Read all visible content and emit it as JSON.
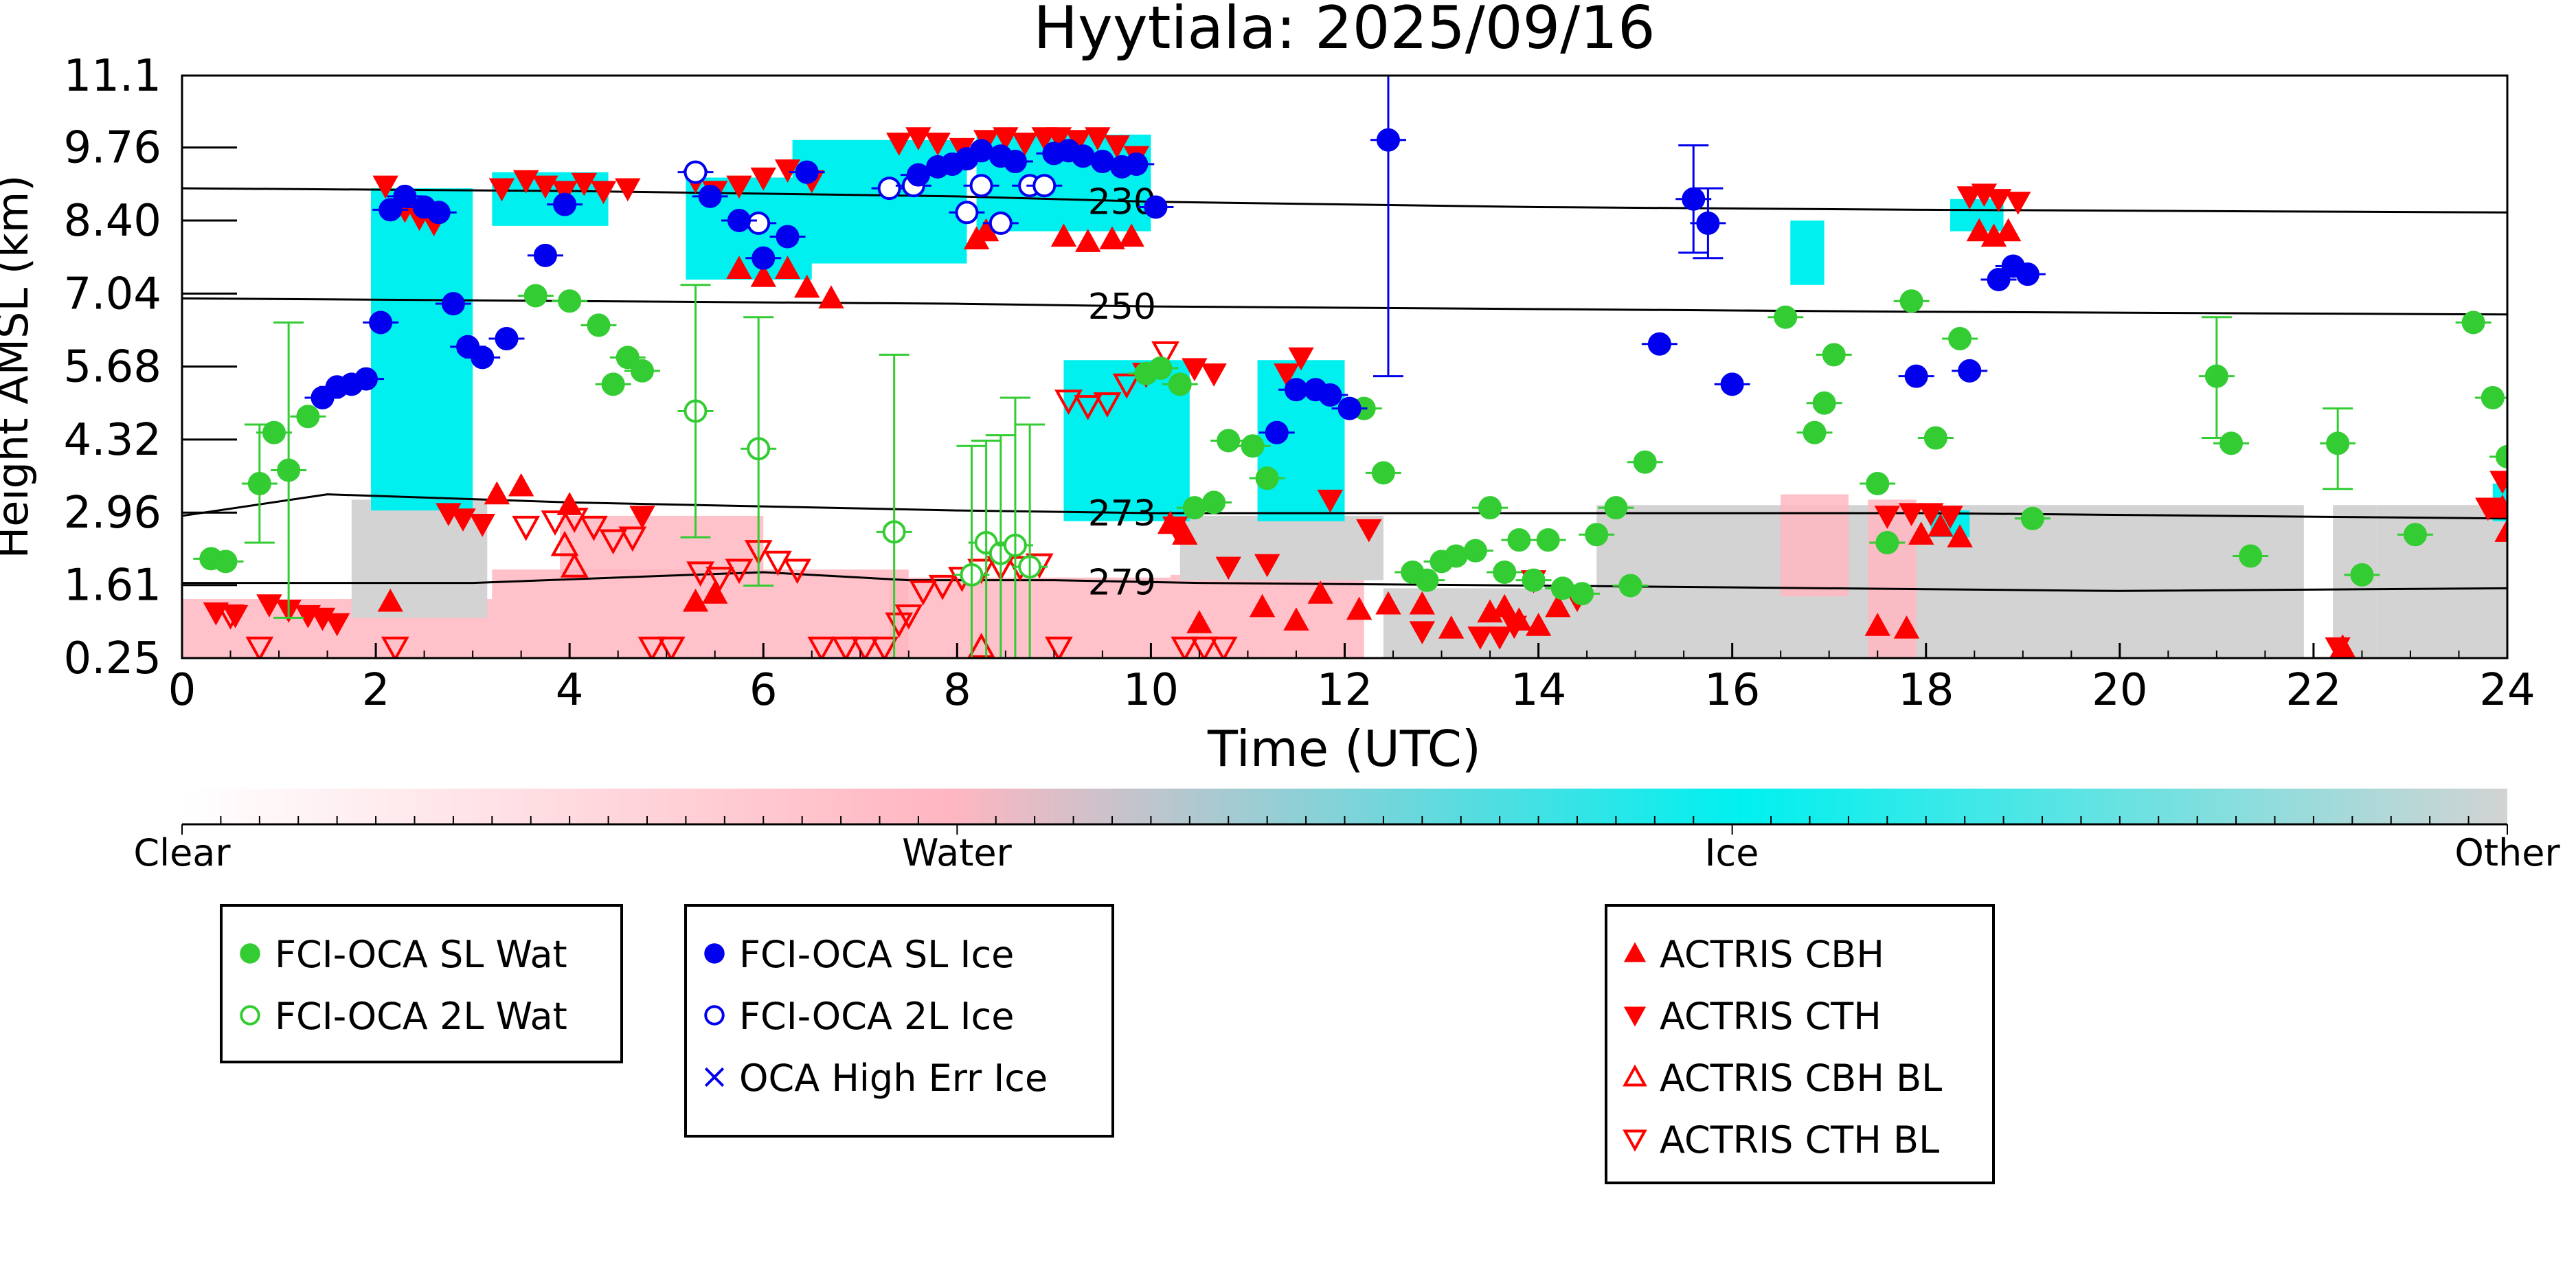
{
  "chart_data": {
    "type": "scatter",
    "title": "Hyytiala: 2025/09/16",
    "xlabel": "Time (UTC)",
    "ylabel": "Height AMSL (km)",
    "xlim": [
      0,
      24
    ],
    "ylim": [
      0.25,
      11.1
    ],
    "xticks": [
      0,
      2,
      4,
      6,
      8,
      10,
      12,
      14,
      16,
      18,
      20,
      22,
      24
    ],
    "yticks": [
      0.25,
      1.61,
      2.96,
      4.32,
      5.68,
      7.04,
      8.4,
      9.76,
      11.1
    ],
    "yticklabels": [
      "0.25",
      "1.61",
      "2.96",
      "4.32",
      "5.68",
      "7.04",
      "8.40",
      "9.76",
      "11.1"
    ],
    "colorbar": {
      "labels": [
        "Clear",
        "Water",
        "Ice",
        "Other"
      ],
      "colors": [
        "#ffffff",
        "#ffb6c1",
        "#00f0f0",
        "#d3d3d3"
      ]
    },
    "colors": {
      "water": "#33cc33",
      "ice": "#0000ee",
      "actris": "#ff0000",
      "cloud_ice": "#00f0f0",
      "cloud_water": "#ffb6c1",
      "cloud_other": "#d3d3d3"
    },
    "contours": [
      {
        "label": "230",
        "x": [
          0,
          4,
          8,
          10,
          14,
          18,
          24
        ],
        "y": [
          9.0,
          8.95,
          8.85,
          8.75,
          8.65,
          8.6,
          8.55
        ]
      },
      {
        "label": "250",
        "x": [
          0,
          4,
          8,
          10,
          14,
          18,
          24
        ],
        "y": [
          6.95,
          6.9,
          6.85,
          6.8,
          6.75,
          6.7,
          6.65
        ]
      },
      {
        "label": "273",
        "x": [
          0,
          1.5,
          4,
          8,
          10,
          14,
          18,
          24
        ],
        "y": [
          2.9,
          3.3,
          3.15,
          3.0,
          2.95,
          2.95,
          2.95,
          2.85
        ]
      },
      {
        "label": "279",
        "x": [
          0,
          3,
          6,
          7.5,
          9,
          10.5,
          14,
          20,
          24
        ],
        "y": [
          1.65,
          1.65,
          1.85,
          1.7,
          1.7,
          1.65,
          1.6,
          1.5,
          1.55
        ]
      }
    ],
    "series": [
      {
        "name": "FCI-OCA SL Wat",
        "x": [
          0.3,
          0.45,
          0.8,
          0.95,
          1.1,
          1.3,
          3.65,
          4.0,
          4.3,
          4.45,
          4.6,
          4.75,
          9.95,
          10.1,
          10.3,
          10.45,
          10.65,
          10.8,
          11.05,
          11.2,
          12.2,
          12.4,
          12.7,
          12.85,
          13.0,
          13.15,
          13.35,
          13.5,
          13.65,
          13.8,
          13.95,
          14.1,
          14.25,
          14.45,
          14.6,
          14.8,
          14.95,
          15.1,
          16.55,
          16.85,
          16.95,
          17.05,
          17.5,
          17.6,
          17.85,
          18.1,
          18.35,
          19.1,
          21.0,
          21.15,
          21.35,
          22.25,
          22.5,
          23.05,
          23.65,
          23.85,
          24.0
        ],
        "y": [
          2.1,
          2.05,
          3.5,
          4.45,
          3.75,
          4.75,
          7.0,
          6.9,
          6.45,
          5.35,
          5.85,
          5.6,
          5.55,
          5.65,
          5.35,
          3.05,
          3.15,
          4.3,
          4.2,
          3.6,
          4.9,
          3.7,
          1.85,
          1.7,
          2.05,
          2.15,
          2.25,
          3.05,
          1.85,
          2.45,
          1.7,
          2.45,
          1.55,
          1.45,
          2.55,
          3.05,
          1.6,
          3.9,
          6.6,
          4.45,
          5.0,
          5.9,
          3.5,
          2.4,
          6.9,
          4.35,
          6.2,
          2.85,
          5.5,
          4.25,
          2.15,
          4.25,
          1.8,
          2.55,
          6.5,
          5.1,
          4.0
        ]
      },
      {
        "name": "FCI-OCA 2L Wat",
        "x": [
          5.3,
          5.95,
          7.35,
          8.15,
          8.3,
          8.45,
          8.6,
          8.75
        ],
        "y": [
          4.85,
          4.15,
          2.6,
          1.8,
          2.4,
          2.2,
          2.35,
          1.95
        ]
      },
      {
        "name": "FCI-OCA SL Ice",
        "x": [
          1.45,
          1.6,
          1.75,
          1.9,
          2.05,
          2.15,
          2.3,
          2.5,
          2.65,
          2.8,
          2.95,
          3.1,
          3.35,
          3.75,
          3.95,
          5.45,
          5.75,
          6.0,
          6.25,
          6.45,
          7.6,
          7.8,
          7.95,
          8.1,
          8.25,
          8.45,
          8.6,
          9.0,
          9.15,
          9.3,
          9.5,
          9.7,
          9.85,
          10.05,
          11.3,
          11.5,
          11.7,
          11.85,
          12.05,
          12.45,
          15.25,
          15.6,
          15.75,
          16.0,
          17.9,
          18.45,
          18.75,
          18.9,
          19.05
        ],
        "y": [
          5.1,
          5.3,
          5.35,
          5.45,
          6.5,
          8.6,
          8.85,
          8.65,
          8.55,
          6.85,
          6.05,
          5.85,
          6.2,
          7.75,
          8.7,
          8.85,
          8.4,
          7.7,
          8.1,
          9.3,
          9.25,
          9.4,
          9.45,
          9.55,
          9.7,
          9.6,
          9.5,
          9.65,
          9.7,
          9.6,
          9.5,
          9.4,
          9.45,
          8.65,
          4.45,
          5.25,
          5.25,
          5.15,
          4.9,
          9.9,
          6.1,
          8.8,
          8.35,
          5.35,
          5.5,
          5.6,
          7.3,
          7.55,
          7.4
        ]
      },
      {
        "name": "FCI-OCA 2L Ice",
        "x": [
          5.3,
          5.95,
          7.3,
          7.55,
          8.1,
          8.25,
          8.45,
          8.75,
          8.9
        ],
        "y": [
          9.3,
          8.35,
          9.0,
          9.05,
          8.55,
          9.05,
          8.35,
          9.05,
          9.05
        ]
      },
      {
        "name": "OCA High Err Ice",
        "x": [],
        "y": []
      },
      {
        "name": "ACTRIS CBH",
        "x": [
          2.15,
          3.25,
          3.5,
          4.0,
          5.3,
          5.5,
          5.75,
          6.0,
          6.25,
          6.45,
          6.7,
          8.2,
          8.3,
          9.1,
          9.35,
          9.6,
          9.8,
          10.2,
          10.35,
          10.5,
          11.15,
          11.5,
          11.75,
          12.15,
          12.45,
          12.8,
          13.1,
          13.5,
          13.65,
          13.8,
          14.0,
          14.2,
          17.5,
          17.8,
          17.95,
          18.15,
          18.35,
          18.55,
          18.7,
          18.85,
          22.3,
          23.95,
          24.0
        ],
        "y": [
          1.3,
          3.3,
          3.45,
          3.1,
          1.3,
          1.45,
          7.5,
          7.35,
          7.5,
          7.15,
          6.95,
          8.05,
          8.2,
          8.1,
          8.0,
          8.05,
          8.1,
          2.75,
          2.55,
          0.9,
          1.2,
          0.95,
          1.45,
          1.15,
          1.25,
          1.25,
          0.8,
          1.1,
          1.2,
          0.95,
          0.85,
          1.2,
          0.85,
          0.8,
          2.55,
          2.7,
          2.5,
          8.2,
          8.1,
          8.2,
          0.45,
          3.05,
          2.6
        ]
      },
      {
        "name": "ACTRIS CTH",
        "x": [
          0.35,
          0.55,
          0.9,
          1.1,
          1.3,
          1.45,
          1.6,
          2.1,
          2.3,
          2.45,
          2.6,
          2.75,
          2.9,
          3.1,
          3.3,
          3.55,
          3.75,
          3.95,
          4.15,
          4.35,
          4.6,
          4.75,
          5.3,
          5.5,
          5.75,
          6.0,
          6.25,
          6.5,
          7.4,
          7.6,
          7.8,
          8.05,
          8.3,
          8.5,
          8.7,
          8.9,
          9.05,
          9.25,
          9.45,
          9.65,
          9.85,
          10.25,
          10.45,
          10.65,
          10.8,
          11.2,
          11.4,
          11.55,
          11.85,
          12.25,
          12.8,
          13.4,
          13.6,
          13.75,
          13.95,
          14.4,
          17.6,
          17.85,
          18.05,
          18.25,
          18.45,
          18.6,
          18.75,
          18.95,
          22.25,
          23.8,
          23.95
        ],
        "y": [
          1.1,
          1.05,
          1.25,
          1.15,
          1.05,
          1.0,
          0.9,
          9.05,
          8.6,
          8.45,
          8.35,
          2.95,
          2.85,
          2.75,
          9.0,
          9.15,
          9.05,
          8.95,
          9.1,
          8.95,
          9.0,
          2.9,
          9.15,
          8.95,
          9.05,
          9.2,
          9.35,
          9.15,
          9.85,
          9.95,
          9.85,
          9.75,
          9.9,
          9.95,
          9.85,
          9.95,
          9.95,
          9.9,
          9.95,
          9.8,
          9.6,
          2.7,
          5.65,
          5.55,
          1.95,
          2.0,
          5.55,
          5.85,
          3.2,
          2.65,
          0.75,
          0.65,
          0.65,
          0.85,
          1.7,
          1.35,
          2.9,
          2.95,
          2.95,
          2.9,
          8.85,
          8.9,
          8.8,
          8.75,
          0.45,
          3.05,
          3.55
        ]
      },
      {
        "name": "ACTRIS CBH BL",
        "x": [
          3.95,
          4.05,
          8.25
        ],
        "y": [
          2.35,
          1.95,
          0.45
        ]
      },
      {
        "name": "ACTRIS CTH BL",
        "x": [
          0.5,
          0.8,
          2.2,
          3.55,
          3.85,
          4.05,
          4.25,
          4.45,
          4.65,
          4.85,
          5.05,
          5.35,
          5.55,
          5.75,
          5.95,
          6.15,
          6.35,
          6.6,
          6.85,
          7.05,
          7.25,
          7.4,
          7.5,
          7.65,
          7.85,
          8.05,
          8.25,
          8.45,
          8.65,
          8.85,
          9.05,
          9.15,
          9.35,
          9.55,
          9.75,
          9.95,
          10.15,
          10.35,
          10.55,
          10.75
        ],
        "y": [
          1.05,
          0.45,
          0.45,
          2.7,
          2.8,
          2.85,
          2.7,
          2.45,
          2.5,
          0.45,
          0.45,
          1.85,
          1.75,
          1.9,
          2.25,
          2.05,
          1.9,
          0.45,
          0.45,
          0.45,
          0.45,
          0.9,
          1.05,
          1.5,
          1.6,
          1.75,
          1.9,
          1.95,
          1.95,
          2.0,
          0.45,
          5.05,
          4.95,
          5.0,
          5.35,
          5.55,
          5.95,
          0.45,
          0.45,
          0.45
        ]
      }
    ],
    "legend": [
      {
        "items": [
          "FCI-OCA SL Wat",
          "FCI-OCA 2L Wat"
        ]
      },
      {
        "items": [
          "FCI-OCA SL Ice",
          "FCI-OCA 2L Ice",
          "OCA High Err Ice"
        ]
      },
      {
        "items": [
          "ACTRIS CBH",
          "ACTRIS CTH",
          "ACTRIS CBH BL",
          "ACTRIS CTH BL"
        ]
      }
    ],
    "legend_placement": "below"
  }
}
